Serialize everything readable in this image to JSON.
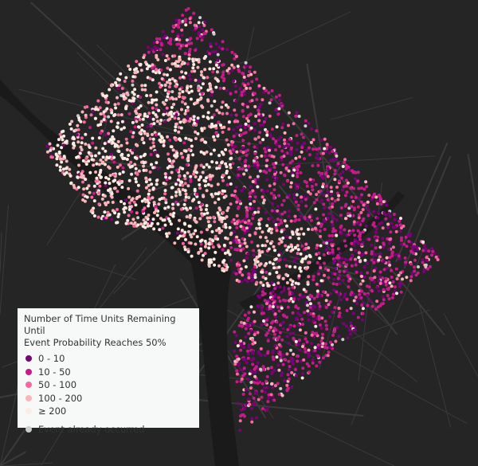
{
  "legend": {
    "title_line1": "Number of Time Units Remaining Until",
    "title_line2": "Event Probability Reaches 50%",
    "classes": [
      {
        "label": "0 - 10",
        "color": "#7a0177"
      },
      {
        "label": "10 - 50",
        "color": "#c51b8a"
      },
      {
        "label": "50 - 100",
        "color": "#f768a1"
      },
      {
        "label": "100 - 200",
        "color": "#fbb4b9"
      },
      {
        "label": "≥ 200",
        "color": "#feebe2"
      }
    ],
    "occurred": {
      "label": "Event already occurred",
      "color": "#cccccc"
    }
  },
  "basemap": {
    "background": "#252525",
    "water": "#1a1a1a",
    "roads": "#3a3a3a"
  }
}
